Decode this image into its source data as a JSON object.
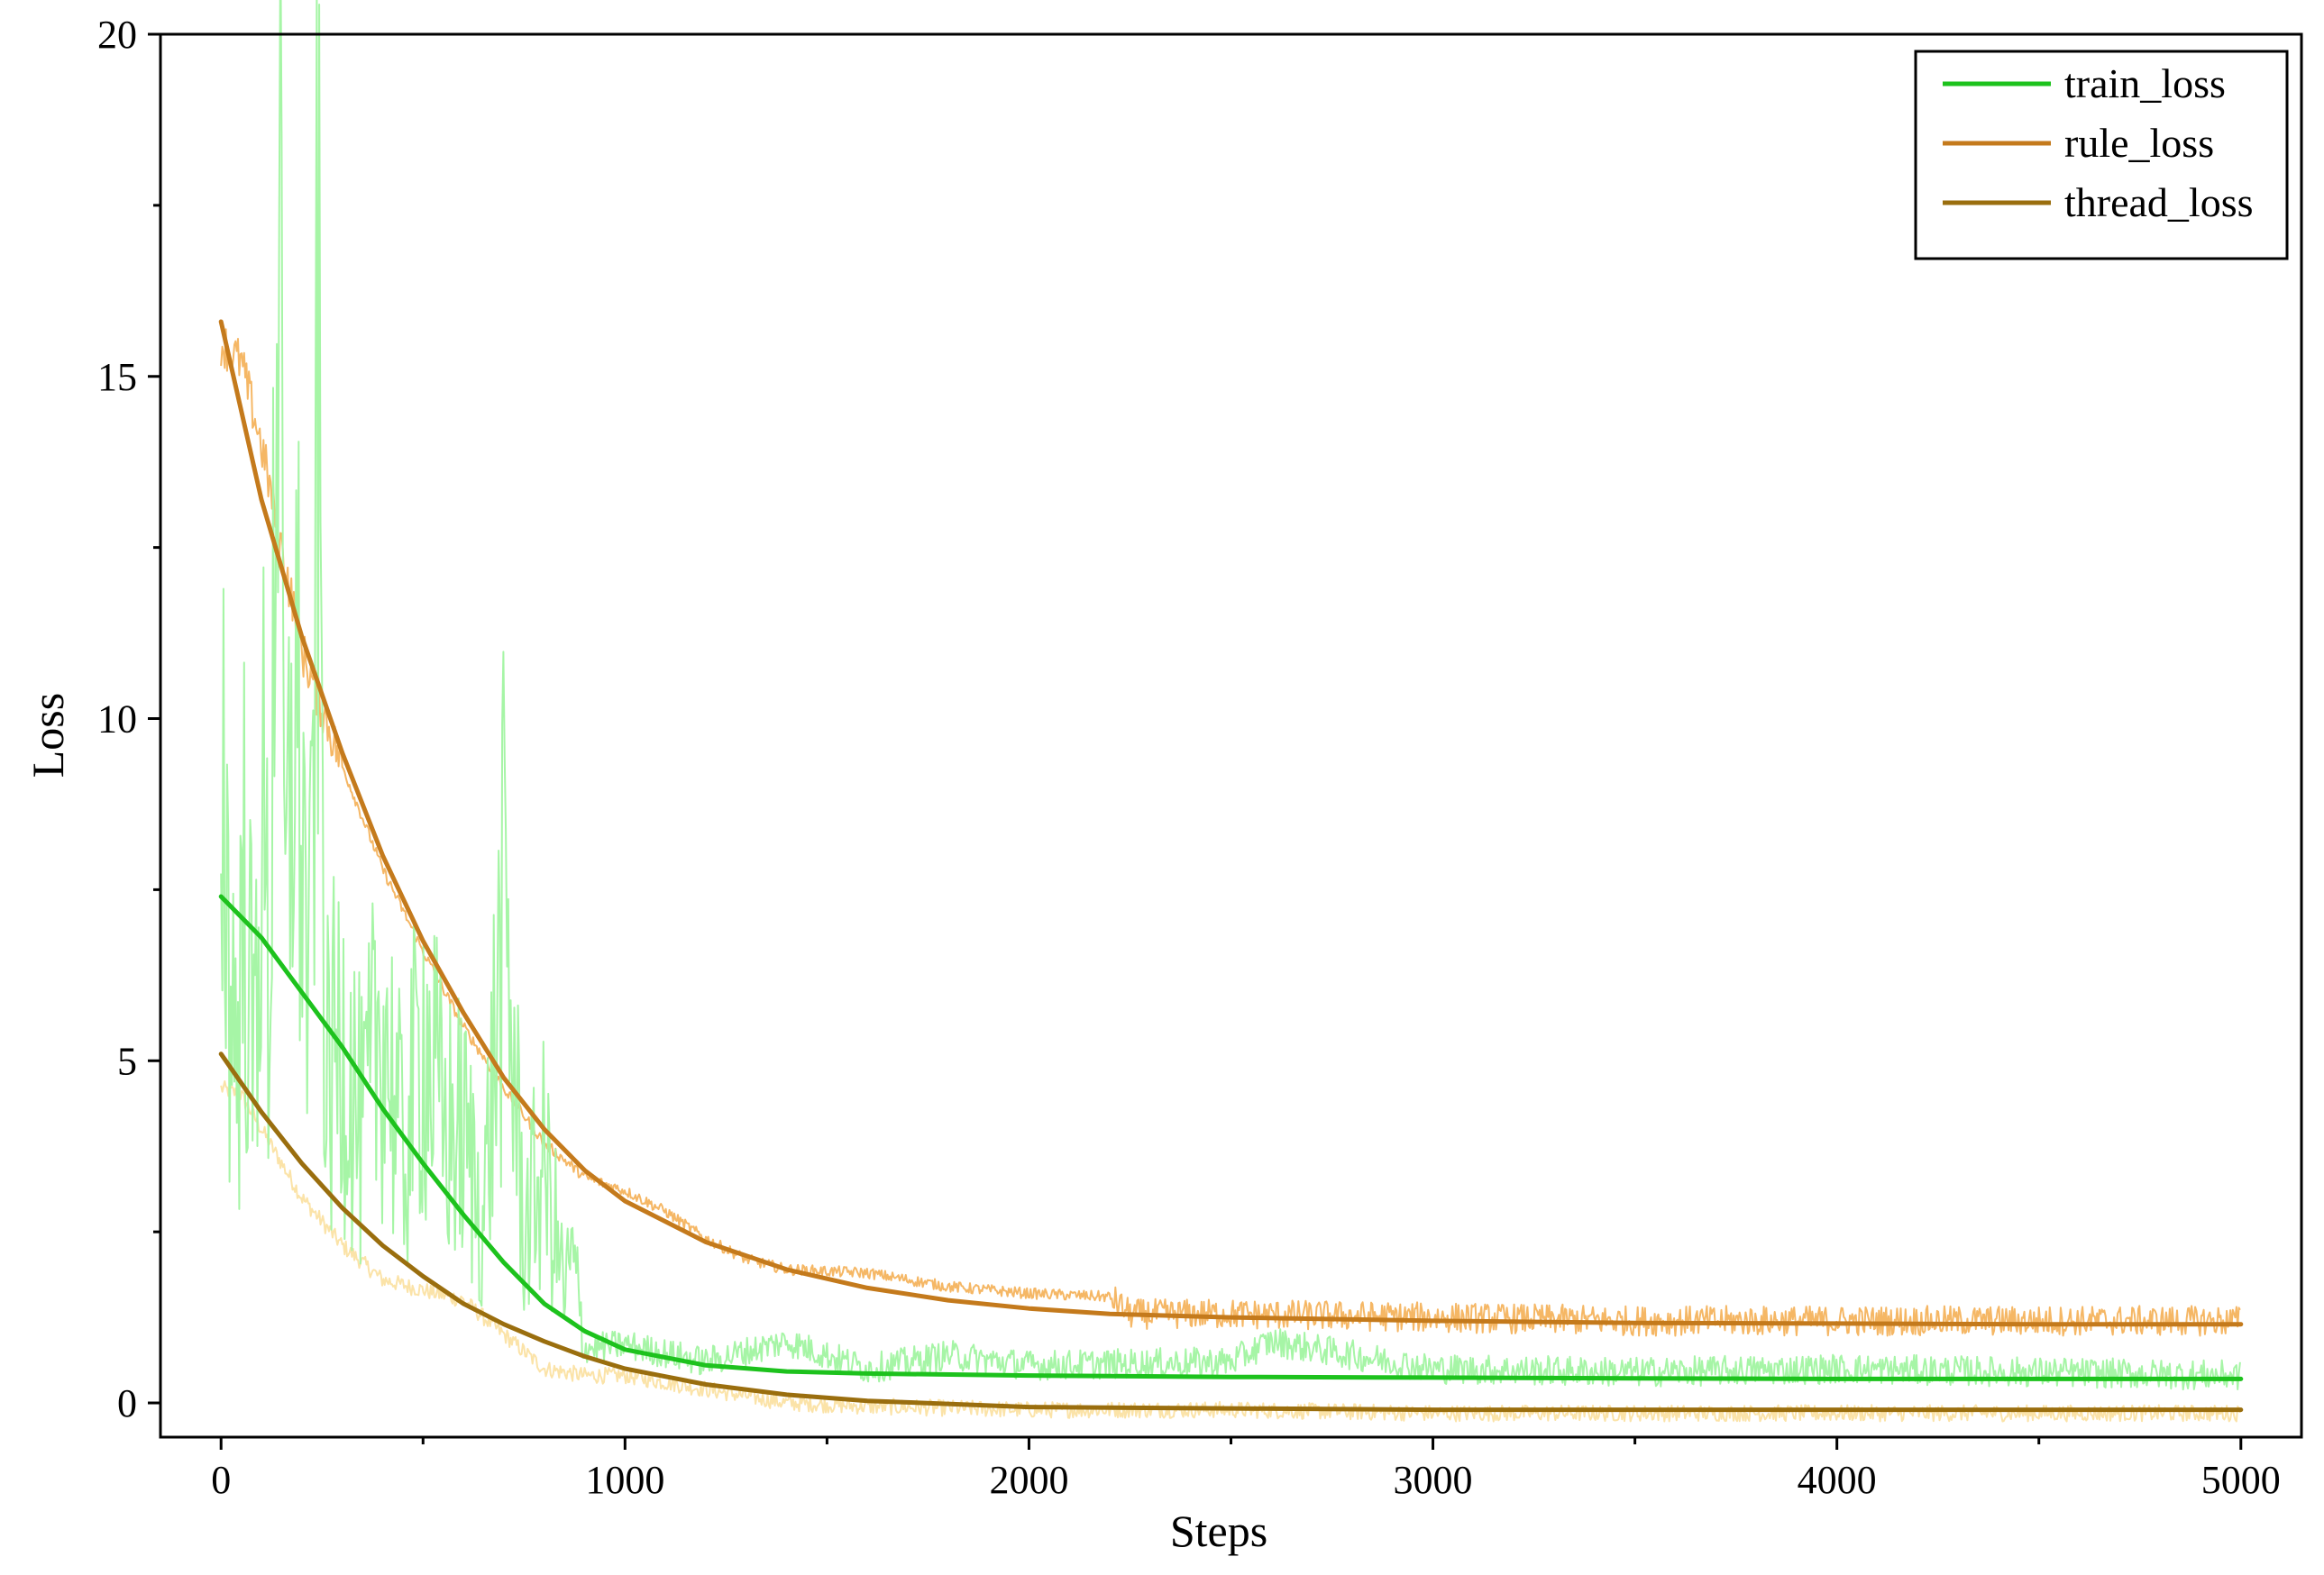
{
  "chart_data": {
    "type": "line",
    "xlabel": "Steps",
    "ylabel": "Loss",
    "xlim": [
      -150,
      5150
    ],
    "ylim": [
      -0.5,
      20
    ],
    "xticks": [
      0,
      1000,
      2000,
      3000,
      4000,
      5000
    ],
    "xtick_labels": [
      "0",
      "1000",
      "2000",
      "3000",
      "4000",
      "5000"
    ],
    "yticks": [
      0,
      5,
      10,
      15,
      20
    ],
    "ytick_labels": [
      "0",
      "5",
      "10",
      "15",
      "20"
    ],
    "grid": false,
    "legend_position": "top-right",
    "series": [
      {
        "name": "train_loss",
        "color": "#1dc21d",
        "raw_color": "#a6f5a6",
        "x": [
          0,
          100,
          200,
          300,
          400,
          500,
          600,
          700,
          800,
          900,
          1000,
          1200,
          1400,
          1600,
          2000,
          2500,
          3000,
          3500,
          4000,
          4500,
          5000
        ],
        "y": [
          7.4,
          6.8,
          6.0,
          5.2,
          4.3,
          3.5,
          2.75,
          2.05,
          1.45,
          1.05,
          0.78,
          0.55,
          0.46,
          0.43,
          0.4,
          0.38,
          0.37,
          0.36,
          0.35,
          0.35,
          0.35
        ],
        "raw_x": [
          0,
          20,
          40,
          60,
          80,
          100,
          120,
          140,
          160,
          180,
          200,
          220,
          240,
          260,
          300,
          350,
          400,
          450,
          500,
          550,
          600,
          650,
          700,
          750,
          800,
          850,
          870,
          900,
          1000,
          1200,
          1400,
          1600,
          1800,
          2000,
          2500,
          2600,
          3000,
          3500,
          4000,
          4500,
          5000
        ],
        "raw_y": [
          10.5,
          6.5,
          5.2,
          7.8,
          4.6,
          9.0,
          5.5,
          18.5,
          6.2,
          11.0,
          8.5,
          5.6,
          15.0,
          4.5,
          5.5,
          3.8,
          5.8,
          3.5,
          5.5,
          4.0,
          3.9,
          2.7,
          7.2,
          2.5,
          3.5,
          1.6,
          2.1,
          0.8,
          0.85,
          0.6,
          0.9,
          0.5,
          0.7,
          0.55,
          0.6,
          0.9,
          0.5,
          0.45,
          0.5,
          0.45,
          0.4
        ]
      },
      {
        "name": "rule_loss",
        "color": "#c47a1c",
        "raw_color": "#f5b765",
        "x": [
          0,
          100,
          200,
          300,
          400,
          500,
          600,
          700,
          800,
          900,
          1000,
          1200,
          1400,
          1600,
          1800,
          2000,
          2200,
          2500,
          3000,
          3500,
          4000,
          4500,
          5000
        ],
        "y": [
          15.8,
          13.2,
          11.2,
          9.5,
          8.0,
          6.75,
          5.7,
          4.75,
          4.0,
          3.4,
          2.95,
          2.35,
          1.95,
          1.68,
          1.5,
          1.38,
          1.3,
          1.25,
          1.2,
          1.17,
          1.16,
          1.15,
          1.15
        ],
        "raw_x": [
          0,
          50,
          100,
          150,
          200,
          300,
          400,
          500,
          600,
          700,
          800,
          900,
          1000,
          1100,
          1200,
          1300,
          1400,
          1600,
          1800,
          2000,
          2200,
          2250,
          2500,
          3000,
          3500,
          4000,
          4500,
          5000
        ],
        "raw_y": [
          15.5,
          15.2,
          14.0,
          12.5,
          11.0,
          9.3,
          7.8,
          6.6,
          5.5,
          4.6,
          3.8,
          3.3,
          3.1,
          2.8,
          2.4,
          2.1,
          1.95,
          1.9,
          1.7,
          1.6,
          1.55,
          1.3,
          1.3,
          1.25,
          1.2,
          1.2,
          1.2,
          1.2
        ]
      },
      {
        "name": "thread_loss",
        "color": "#9a6e0e",
        "raw_color": "#fbe3a8",
        "x": [
          0,
          100,
          200,
          300,
          400,
          500,
          600,
          700,
          800,
          900,
          1000,
          1200,
          1400,
          1600,
          2000,
          2500,
          3000,
          3500,
          4000,
          4500,
          5000
        ],
        "y": [
          5.1,
          4.25,
          3.5,
          2.85,
          2.3,
          1.85,
          1.45,
          1.15,
          0.9,
          0.68,
          0.5,
          0.27,
          0.12,
          0.03,
          -0.06,
          -0.08,
          -0.1,
          -0.1,
          -0.1,
          -0.1,
          -0.1
        ],
        "raw_x": [
          0,
          50,
          100,
          200,
          300,
          400,
          500,
          600,
          700,
          800,
          900,
          1000,
          1200,
          1400,
          1600,
          2000,
          2500,
          3000,
          4000,
          5000
        ],
        "raw_y": [
          4.6,
          4.5,
          4.0,
          3.0,
          2.3,
          1.8,
          1.65,
          1.5,
          1.0,
          0.5,
          0.4,
          0.4,
          0.2,
          0.0,
          -0.05,
          -0.1,
          -0.1,
          -0.15,
          -0.15,
          -0.15
        ]
      }
    ]
  }
}
